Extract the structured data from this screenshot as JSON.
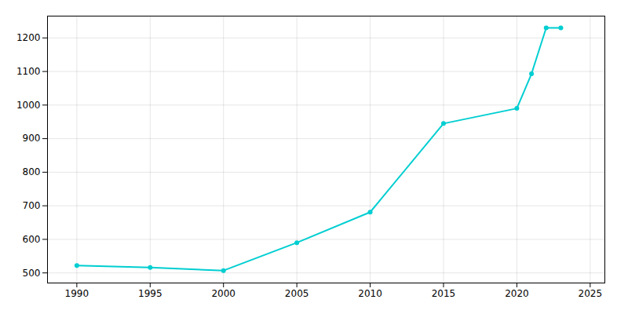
{
  "chart_data": {
    "type": "line",
    "x": [
      1990,
      1995,
      2000,
      2005,
      2010,
      2015,
      2020,
      2021,
      2022,
      2023
    ],
    "values": [
      522,
      516,
      507,
      590,
      681,
      945,
      990,
      1093,
      1230,
      1230
    ],
    "color": "#00CED1",
    "marker": "circle",
    "xlim": [
      1988,
      2026
    ],
    "ylim": [
      470,
      1265
    ],
    "xticks": [
      1990,
      1995,
      2000,
      2005,
      2010,
      2015,
      2020,
      2025
    ],
    "yticks": [
      500,
      600,
      700,
      800,
      900,
      1000,
      1100,
      1200
    ],
    "grid": true
  }
}
